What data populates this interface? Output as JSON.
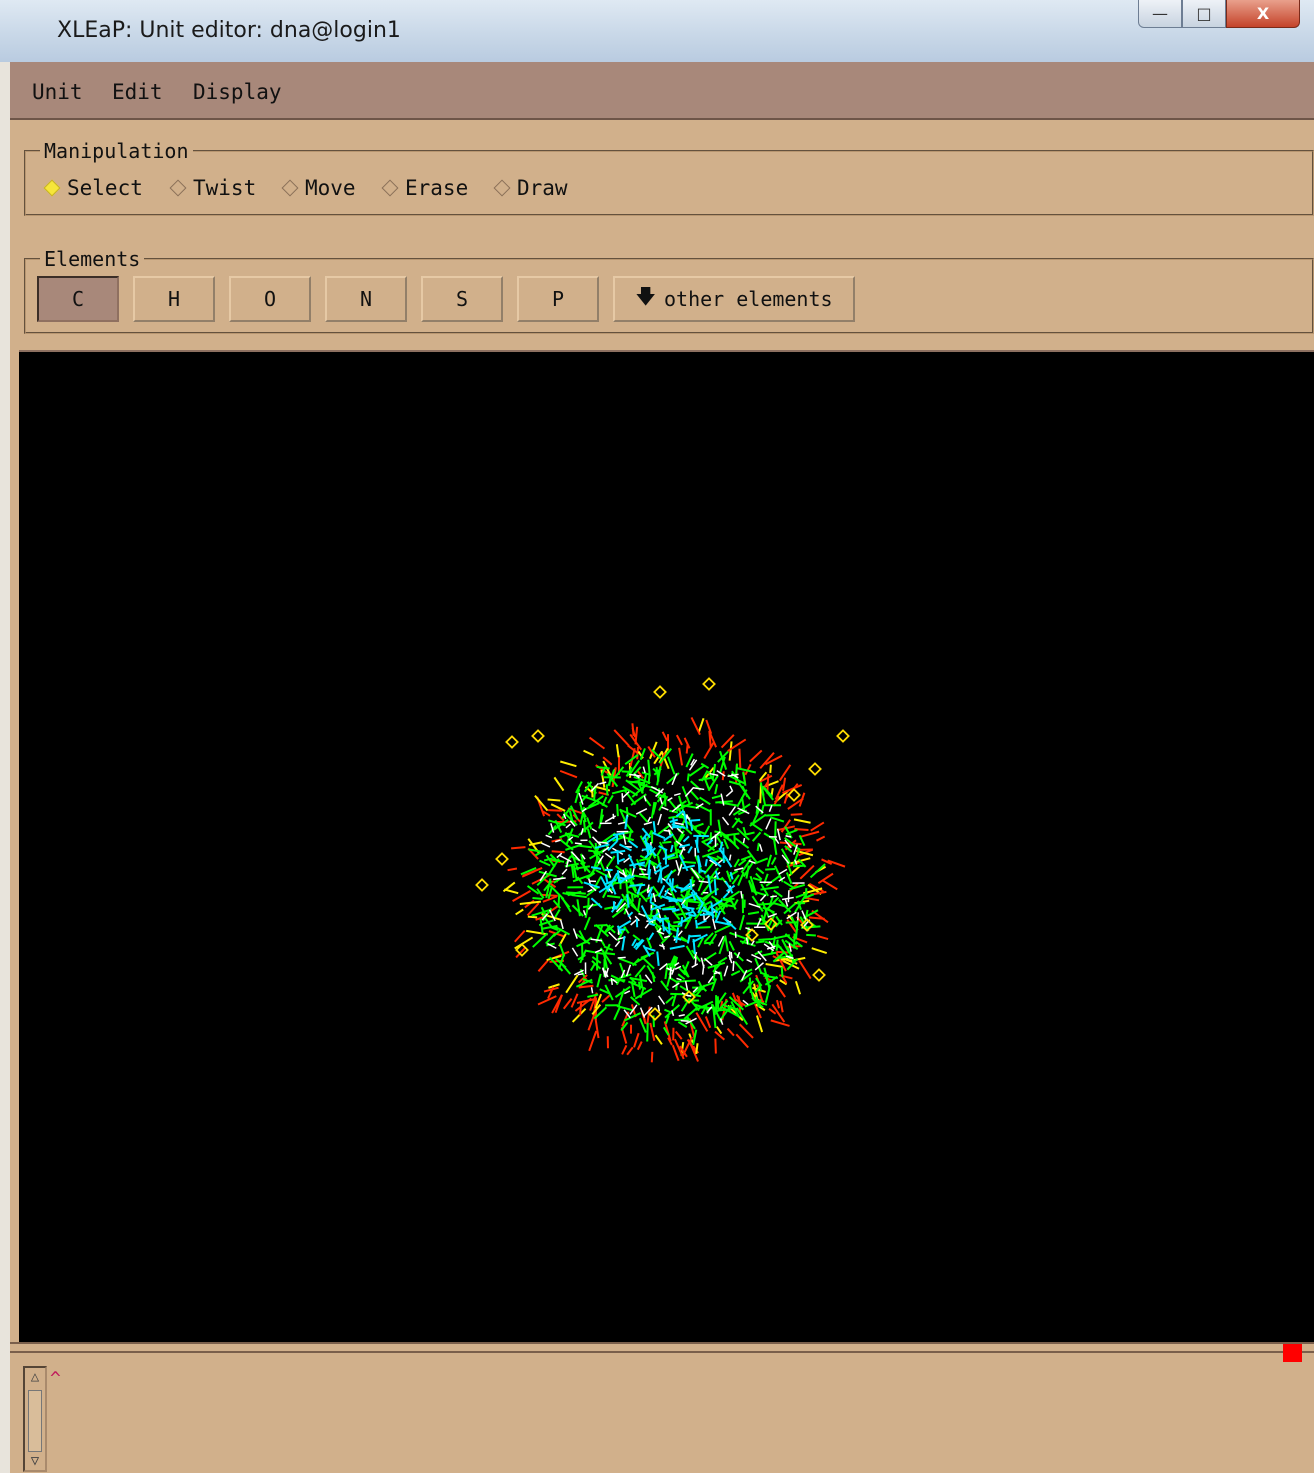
{
  "window": {
    "title": "XLEaP: Unit editor: dna@login1",
    "controls": {
      "minimize": "—",
      "maximize": "□",
      "close": "X"
    }
  },
  "menubar": {
    "items": [
      {
        "label": "Unit"
      },
      {
        "label": "Edit"
      },
      {
        "label": "Display"
      }
    ]
  },
  "manipulation": {
    "title": "Manipulation",
    "options": [
      {
        "label": "Select",
        "selected": true
      },
      {
        "label": "Twist",
        "selected": false
      },
      {
        "label": "Move",
        "selected": false
      },
      {
        "label": "Erase",
        "selected": false
      },
      {
        "label": "Draw",
        "selected": false
      }
    ]
  },
  "elements": {
    "title": "Elements",
    "buttons": [
      "C",
      "H",
      "O",
      "N",
      "S",
      "P"
    ],
    "selected": "C",
    "other_label": "other elements",
    "other_icon": "down-arrow-icon"
  },
  "viewer": {
    "background": "#000000",
    "atom_colors": {
      "carbon": "#00ff00",
      "nitrogen": "#00e5ff",
      "hydrogen": "#ffffff",
      "oxygen": "#ff2a00",
      "phosphorus": "#ffee00"
    },
    "ion_marker": "diamond-icon"
  },
  "console": {
    "prompt_glyph": "^",
    "sash_color": "#ff0000"
  }
}
